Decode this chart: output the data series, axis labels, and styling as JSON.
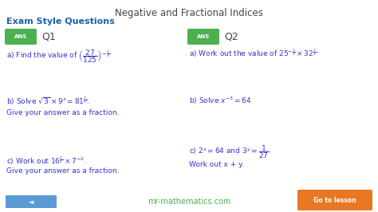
{
  "title": "Negative and Fractional Indices",
  "title_color": "#444444",
  "bg_color": "#ffffff",
  "header_text": "Exam Style Questions",
  "header_color": "#1a5fa8",
  "ans_bg": "#4caf50",
  "ans_text_color": "#ffffff",
  "question_color": "#3333cc",
  "footer_text": "mr-mathematics.com",
  "footer_color": "#4caf50",
  "button_text": "Go to lesson",
  "button_bg": "#e87722",
  "button_text_color": "#ffffff",
  "blue_bar_color": "#5b9bd5"
}
